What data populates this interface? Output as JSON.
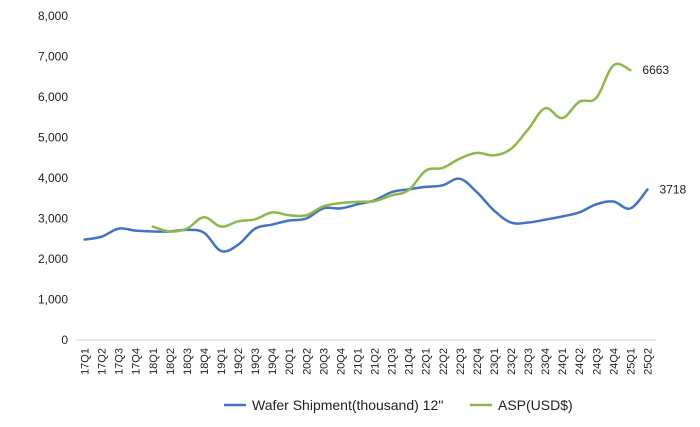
{
  "chart_data": {
    "type": "line",
    "title": "",
    "xlabel": "",
    "ylabel": "",
    "ylim": [
      0,
      8000
    ],
    "yticks": [
      0,
      1000,
      2000,
      3000,
      4000,
      5000,
      6000,
      7000,
      8000
    ],
    "ytick_labels": [
      "0",
      "1,000",
      "2,000",
      "3,000",
      "4,000",
      "5,000",
      "6,000",
      "7,000",
      "8,000"
    ],
    "grid": false,
    "legend_position": "bottom",
    "categories": [
      "17Q1",
      "17Q2",
      "17Q3",
      "17Q4",
      "18Q1",
      "18Q2",
      "18Q3",
      "18Q4",
      "19Q1",
      "19Q2",
      "19Q3",
      "19Q4",
      "20Q1",
      "20Q2",
      "20Q3",
      "20Q4",
      "21Q1",
      "21Q2",
      "21Q3",
      "21Q4",
      "22Q1",
      "22Q2",
      "22Q3",
      "22Q4",
      "23Q1",
      "23Q2",
      "23Q3",
      "23Q4",
      "24Q1",
      "24Q2",
      "24Q3",
      "24Q4",
      "25Q1",
      "25Q2"
    ],
    "series": [
      {
        "name": "Wafer Shipment(thousand) 12''",
        "color": "#4472C4",
        "values": [
          2480,
          2550,
          2750,
          2700,
          2680,
          2680,
          2720,
          2650,
          2200,
          2350,
          2750,
          2850,
          2950,
          3000,
          3250,
          3250,
          3350,
          3450,
          3650,
          3720,
          3780,
          3820,
          3980,
          3650,
          3200,
          2900,
          2900,
          2970,
          3050,
          3150,
          3350,
          3420,
          3250,
          3718
        ],
        "end_label": "3718"
      },
      {
        "name": "ASP(USD$)",
        "color": "#8DB84A",
        "values": [
          null,
          null,
          null,
          null,
          2800,
          2680,
          2750,
          3030,
          2800,
          2930,
          2980,
          3150,
          3080,
          3080,
          3300,
          3380,
          3410,
          3430,
          3570,
          3700,
          4180,
          4250,
          4480,
          4620,
          4560,
          4720,
          5200,
          5720,
          5480,
          5880,
          5980,
          6780,
          6663,
          null
        ],
        "end_label": "6663"
      }
    ]
  }
}
